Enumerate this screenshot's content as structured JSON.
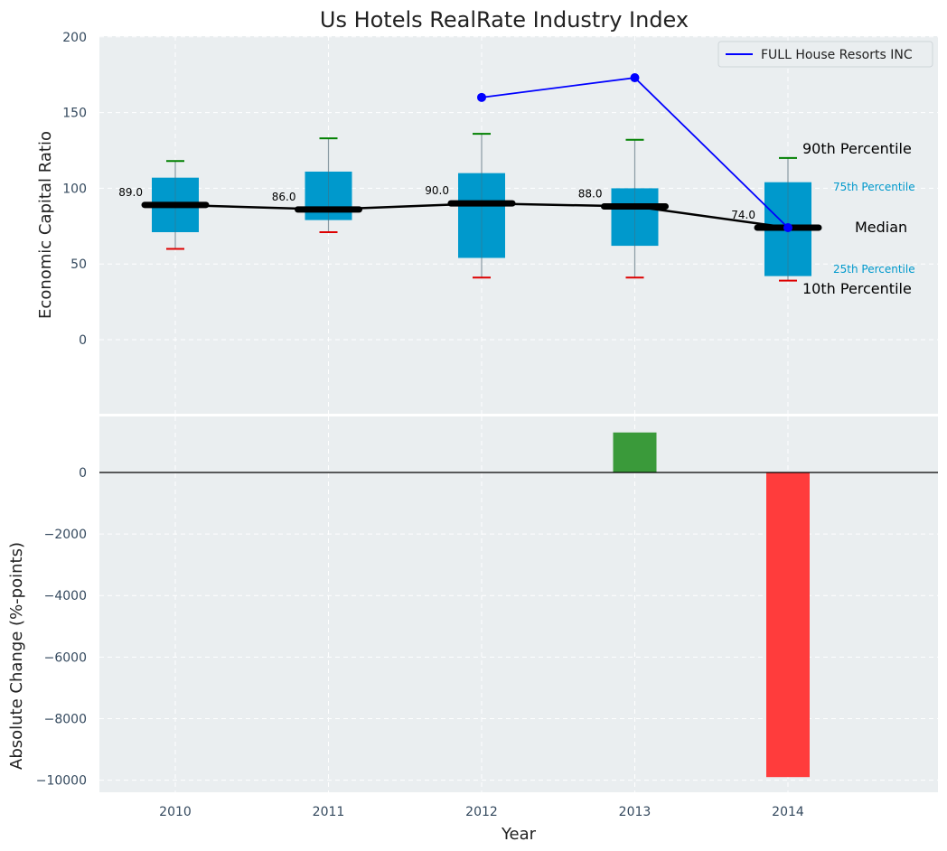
{
  "chart_data": [
    {
      "type": "box",
      "title": "Us Hotels RealRate Industry Index",
      "ylabel": "Economic Capital Ratio",
      "ylim": [
        -50,
        200
      ],
      "yticks": [
        0,
        50,
        100,
        150,
        200
      ],
      "categories": [
        "2010",
        "2011",
        "2012",
        "2013",
        "2014"
      ],
      "grid": true,
      "boxes": [
        {
          "year": "2010",
          "p10": 60,
          "p25": 71,
          "median": 89,
          "p75": 107,
          "p90": 118
        },
        {
          "year": "2011",
          "p10": 71,
          "p25": 79,
          "median": 86,
          "p75": 111,
          "p90": 133
        },
        {
          "year": "2012",
          "p10": 41,
          "p25": 54,
          "median": 90,
          "p75": 110,
          "p90": 136
        },
        {
          "year": "2013",
          "p10": 41,
          "p25": 62,
          "median": 88,
          "p75": 100,
          "p90": 132
        },
        {
          "year": "2014",
          "p10": 39,
          "p25": 42,
          "median": 74,
          "p75": 104,
          "p90": 120
        }
      ],
      "median_labels": [
        "89.0",
        "86.0",
        "90.0",
        "88.0",
        "74.0"
      ],
      "company_series": {
        "name": "FULL House Resorts INC",
        "x": [
          "2012",
          "2013",
          "2014"
        ],
        "values": [
          160,
          173,
          74
        ]
      },
      "legend": "top-right",
      "annotations": {
        "p90": "90th Percentile",
        "p75": "75th Percentile",
        "median": "Median",
        "p25": "25th Percentile",
        "p10": "10th Percentile"
      }
    },
    {
      "type": "bar",
      "xlabel": "Year",
      "ylabel": "Absolute Change (%-points)",
      "categories": [
        "2010",
        "2011",
        "2012",
        "2013",
        "2014"
      ],
      "values": [
        0,
        0,
        0,
        1300,
        -9900
      ],
      "ylim": [
        -10400,
        1500
      ],
      "yticks": [
        0,
        -2000,
        -4000,
        -6000,
        -8000,
        -10000
      ],
      "ytick_labels": [
        "0",
        "−2000",
        "−4000",
        "−6000",
        "−8000",
        "−10000"
      ],
      "grid": true
    }
  ],
  "colors": {
    "panel_bg": "#eaeef0",
    "box": "#0099cc",
    "whisker_top": "#008000",
    "whisker_bottom": "#dd0000",
    "median": "#000000",
    "company": "#0000ff",
    "positive": "#3a9a3a",
    "negative": "#ff3c3c",
    "tick_text": "#34495e"
  }
}
